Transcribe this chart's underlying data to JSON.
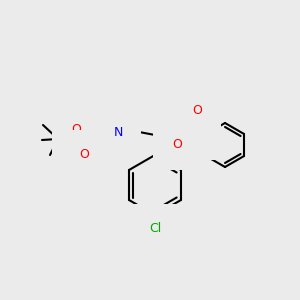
{
  "background_color": "#ebebeb",
  "bond_color": "#000000",
  "atom_colors": {
    "O": "#ff0000",
    "N": "#0000ff",
    "S": "#cccc00",
    "Cl": "#00aa00",
    "H": "#808080",
    "C": "#000000"
  },
  "font_size": 9,
  "line_width": 1.5
}
